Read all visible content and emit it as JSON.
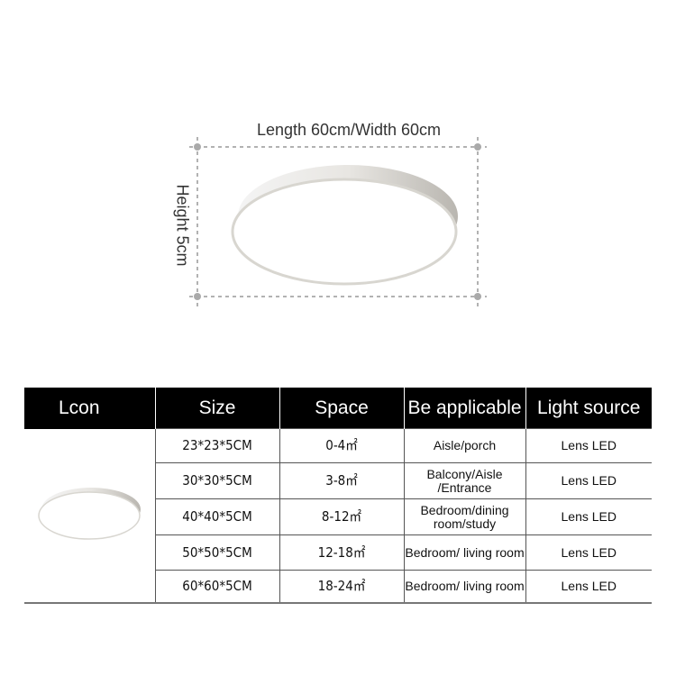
{
  "dimensions": {
    "length_width": "Length 60cm/Width 60cm",
    "height": "Height 5cm"
  },
  "table": {
    "headers": [
      "Lcon",
      "Size",
      "Space",
      "Be applicable",
      "Light source"
    ],
    "rows": [
      {
        "size": "23*23*5CM",
        "space": "0-4㎡",
        "applicable": "Aisle/porch",
        "light": "Lens LED"
      },
      {
        "size": "30*30*5CM",
        "space": "3-8㎡",
        "applicable": "Balcony/Aisle /Entrance",
        "light": "Lens LED"
      },
      {
        "size": "40*40*5CM",
        "space": "8-12㎡",
        "applicable": "Bedroom/dining room/study",
        "light": "Lens LED"
      },
      {
        "size": "50*50*5CM",
        "space": "12-18㎡",
        "applicable": "Bedroom/ living room",
        "light": "Lens LED"
      },
      {
        "size": "60*60*5CM",
        "space": "18-24㎡",
        "applicable": "Bedroom/ living room",
        "light": "Lens LED"
      }
    ]
  }
}
